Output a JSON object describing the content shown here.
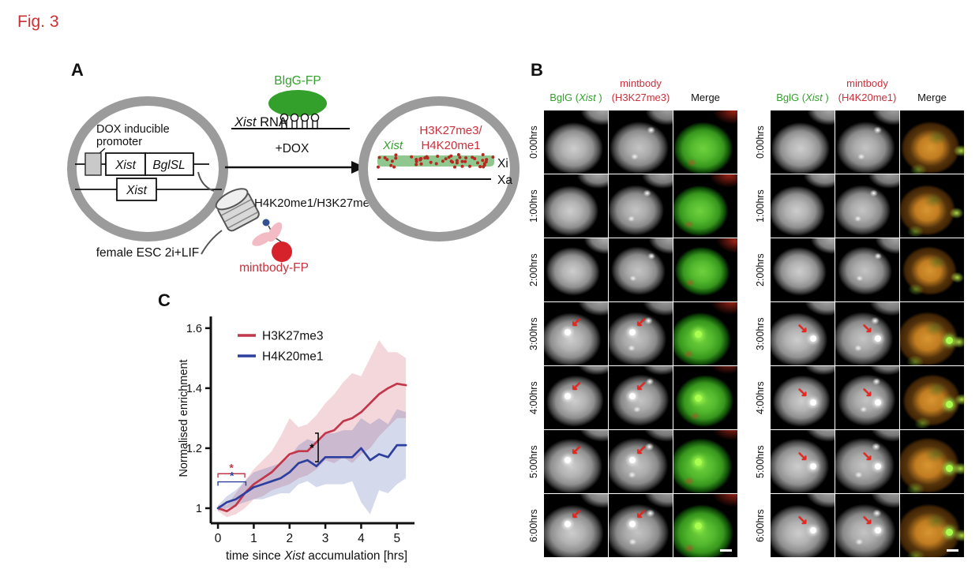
{
  "figure": {
    "label": "Fig. 3",
    "label_color": "#cf2f32"
  },
  "colors": {
    "green": "#33a02c",
    "red_text": "#c9303c",
    "gray_ring": "#9b9b9b",
    "series_red": "#c2374b",
    "series_blue": "#2c3f9e",
    "arrow_red": "#e8281e"
  },
  "panel_a": {
    "label": "A",
    "left_cell": {
      "promoter_line1": "DOX inducible",
      "promoter_line2": "promoter",
      "gene_box_1": "Xist",
      "gene_box_2": "BglSL",
      "gene_box_3": "Xist",
      "caption": "female ESC 2i+LIF"
    },
    "bglg_fp_label": "BlgG-FP",
    "xist_rna_italic": "Xist",
    "xist_rna_rest": " RNA",
    "dox_label": "+DOX",
    "histone_marks_label": "H4K20me1/H3K27me3",
    "mintbody_label": "mintbody-FP",
    "right_cell": {
      "xist_label": "Xist",
      "marks_line1": "H3K27me3/",
      "marks_line2": "H4K20me1",
      "xi_label": "Xi",
      "xa_label": "Xa"
    }
  },
  "panel_b": {
    "label": "B",
    "times": [
      "0:00hrs",
      "1:00hrs",
      "2:00hrs",
      "3:00hrs",
      "4:00hrs",
      "5:00hrs",
      "6:00hrs"
    ],
    "arrow_rows": [
      false,
      false,
      false,
      true,
      true,
      true,
      true
    ],
    "arrow_glyphs": {
      "sw": "↙",
      "se": "↘"
    },
    "sets": [
      {
        "header_top": "mintbody",
        "col1_pre": "BglG (",
        "col1_italic": "Xist",
        "col1_post": " )",
        "col2": "(H3K27me3)",
        "col3": "Merge",
        "merge_style": "mergeGreen",
        "arrow_dir": "sw"
      },
      {
        "header_top": "mintbody",
        "col1_pre": "BglG (",
        "col1_italic": "Xist",
        "col1_post": " )",
        "col2": "(H4K20me1)",
        "col3": "Merge",
        "merge_style": "mergeOrange",
        "arrow_dir": "se"
      }
    ]
  },
  "panel_c": {
    "label": "C",
    "ylabel": "Normalised enrichment",
    "xlabel_pre": "time since ",
    "xlabel_italic": "Xist",
    "xlabel_post": " accumulation [hrs]"
  },
  "chart_data": {
    "type": "line",
    "title": "",
    "xlabel": "time since Xist accumulation [hrs]",
    "ylabel": "Normalised enrichment",
    "x": [
      0,
      0.25,
      0.5,
      0.75,
      1,
      1.25,
      1.5,
      1.75,
      2,
      2.25,
      2.5,
      2.75,
      3,
      3.25,
      3.5,
      3.75,
      4,
      4.25,
      4.5,
      4.75,
      5,
      5.25
    ],
    "xticks": [
      0,
      1,
      2,
      3,
      4,
      5
    ],
    "xtick_labels": [
      "0",
      "1",
      "2",
      "3",
      "4",
      "5"
    ],
    "yticks": [
      1,
      1.2,
      1.4,
      1.6
    ],
    "ytick_labels": [
      "1",
      "1.2",
      "1.4",
      "1.6"
    ],
    "xlim": [
      -0.2,
      5.6
    ],
    "ylim": [
      0.95,
      1.66
    ],
    "grid": false,
    "legend_position": "upper-left-inside",
    "series": [
      {
        "name": "H3K27me3",
        "color": "#c2374b",
        "values": [
          1.0,
          0.99,
          1.01,
          1.05,
          1.08,
          1.1,
          1.12,
          1.15,
          1.18,
          1.19,
          1.19,
          1.22,
          1.25,
          1.26,
          1.29,
          1.3,
          1.32,
          1.35,
          1.38,
          1.4,
          1.415,
          1.41
        ],
        "band_upper": [
          1.01,
          1.01,
          1.05,
          1.09,
          1.13,
          1.16,
          1.19,
          1.24,
          1.3,
          1.27,
          1.28,
          1.31,
          1.35,
          1.38,
          1.42,
          1.45,
          1.44,
          1.5,
          1.56,
          1.52,
          1.52,
          1.5
        ],
        "band_lower": [
          0.99,
          0.97,
          0.98,
          1.0,
          1.03,
          1.04,
          1.06,
          1.07,
          1.08,
          1.1,
          1.11,
          1.13,
          1.16,
          1.15,
          1.17,
          1.15,
          1.18,
          1.2,
          1.24,
          1.27,
          1.3,
          1.3
        ]
      },
      {
        "name": "H4K20me1",
        "color": "#2c3f9e",
        "values": [
          1.0,
          1.02,
          1.03,
          1.05,
          1.07,
          1.08,
          1.09,
          1.1,
          1.12,
          1.15,
          1.16,
          1.14,
          1.17,
          1.17,
          1.17,
          1.17,
          1.2,
          1.16,
          1.18,
          1.17,
          1.21,
          1.21
        ],
        "band_upper": [
          1.01,
          1.04,
          1.06,
          1.09,
          1.12,
          1.13,
          1.14,
          1.15,
          1.17,
          1.21,
          1.23,
          1.22,
          1.25,
          1.25,
          1.26,
          1.26,
          1.3,
          1.28,
          1.3,
          1.28,
          1.33,
          1.32
        ],
        "band_lower": [
          0.99,
          1.0,
          1.01,
          1.02,
          1.03,
          1.03,
          1.04,
          1.05,
          1.05,
          1.08,
          1.09,
          1.07,
          1.08,
          1.08,
          1.08,
          1.09,
          1.02,
          0.98,
          1.06,
          1.05,
          1.08,
          1.1
        ]
      }
    ],
    "annotations": [
      {
        "type": "bracket",
        "x1": 0,
        "x2": 0.75,
        "y": 1.115,
        "color": "#c2374b",
        "star": "*"
      },
      {
        "type": "bracket",
        "x1": 0,
        "x2": 0.78,
        "y": 1.088,
        "color": "#2c3f9e",
        "star": "*"
      },
      {
        "type": "vbracket",
        "x": 2.8,
        "y1": 1.155,
        "y2": 1.25,
        "color": "#000000",
        "star": "*"
      }
    ]
  }
}
